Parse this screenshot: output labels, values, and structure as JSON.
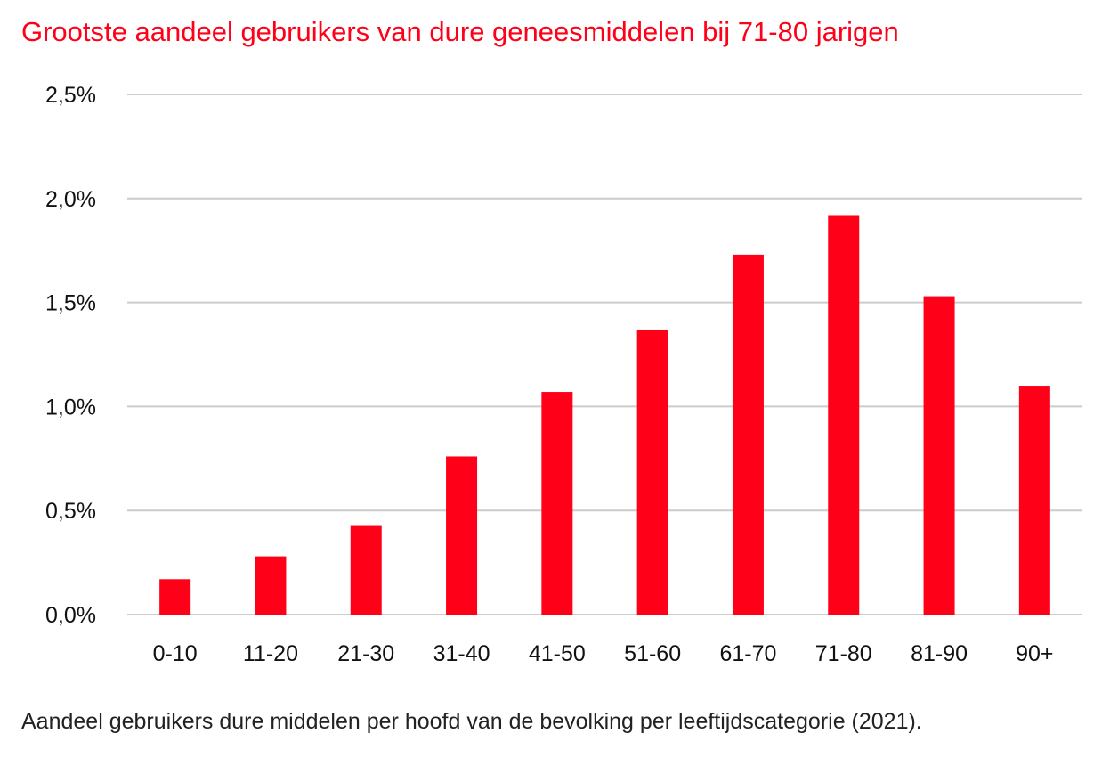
{
  "chart_data": {
    "type": "bar",
    "title": "Grootste aandeel gebruikers van dure geneesmiddelen bij 71-80 jarigen",
    "caption": "Aandeel gebruikers dure middelen per hoofd van de bevolking per leeftijdscategorie (2021).",
    "categories": [
      "0-10",
      "11-20",
      "21-30",
      "31-40",
      "41-50",
      "51-60",
      "61-70",
      "71-80",
      "81-90",
      "90+"
    ],
    "values": [
      0.17,
      0.28,
      0.43,
      0.76,
      1.07,
      1.37,
      1.73,
      1.92,
      1.53,
      1.1
    ],
    "unit": "%",
    "ylim": [
      0,
      2.5
    ],
    "yticks": [
      "0,0%",
      "0,5%",
      "1,0%",
      "1,5%",
      "2,0%",
      "2,5%"
    ],
    "ytick_values": [
      0,
      0.5,
      1.0,
      1.5,
      2.0,
      2.5
    ],
    "grid": true,
    "legend": "none",
    "xlabel": "",
    "ylabel": "",
    "colors": {
      "bar": "#ff0019",
      "title": "#ff0019",
      "grid": "#cccccc",
      "text": "#111111"
    }
  }
}
